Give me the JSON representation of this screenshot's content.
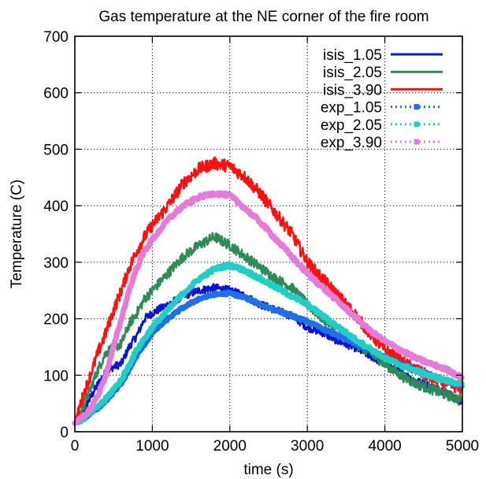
{
  "chart_data": {
    "type": "line",
    "title": "Gas temperature at the NE corner of the fire room",
    "xlabel": "time (s)",
    "ylabel": "Temperature (C)",
    "xlim": [
      0,
      5000
    ],
    "ylim": [
      0,
      700
    ],
    "xticks": [
      0,
      1000,
      2000,
      3000,
      4000,
      5000
    ],
    "yticks": [
      0,
      100,
      200,
      300,
      400,
      500,
      600,
      700
    ],
    "grid": true,
    "legend_position": "top-right",
    "series": [
      {
        "name": "isis_1.05",
        "style": "solid",
        "color": "#0a14d2",
        "noise": 7,
        "x": [
          0,
          100,
          200,
          300,
          400,
          500,
          600,
          700,
          800,
          900,
          1000,
          1200,
          1400,
          1600,
          1800,
          2000,
          2200,
          2400,
          2600,
          2800,
          3000,
          3200,
          3400,
          3600,
          3800,
          4000,
          4200,
          4400,
          4600,
          4800,
          5000
        ],
        "y": [
          15,
          35,
          60,
          85,
          105,
          115,
          120,
          150,
          170,
          200,
          210,
          225,
          240,
          250,
          255,
          250,
          240,
          225,
          215,
          205,
          185,
          175,
          160,
          150,
          135,
          120,
          105,
          90,
          80,
          70,
          50
        ]
      },
      {
        "name": "isis_2.05",
        "style": "solid",
        "color": "#2e8b57",
        "noise": 9,
        "x": [
          0,
          100,
          200,
          300,
          400,
          500,
          600,
          700,
          800,
          900,
          1000,
          1200,
          1400,
          1600,
          1800,
          2000,
          2200,
          2400,
          2600,
          2800,
          3000,
          3200,
          3400,
          3600,
          3800,
          4000,
          4200,
          4400,
          4600,
          4800,
          5000
        ],
        "y": [
          15,
          40,
          75,
          110,
          140,
          150,
          155,
          190,
          210,
          235,
          250,
          280,
          310,
          330,
          345,
          330,
          310,
          290,
          270,
          255,
          225,
          200,
          180,
          160,
          140,
          120,
          100,
          85,
          75,
          65,
          55
        ]
      },
      {
        "name": "isis_3.90",
        "style": "solid",
        "color": "#ff1010",
        "noise": 11,
        "x": [
          0,
          100,
          200,
          300,
          400,
          500,
          600,
          700,
          800,
          900,
          1000,
          1200,
          1400,
          1600,
          1800,
          2000,
          2200,
          2400,
          2600,
          2800,
          3000,
          3200,
          3400,
          3600,
          3800,
          4000,
          4200,
          4400,
          4600,
          4800,
          5000
        ],
        "y": [
          18,
          60,
          100,
          140,
          175,
          215,
          250,
          290,
          320,
          345,
          365,
          400,
          440,
          465,
          475,
          470,
          450,
          420,
          385,
          350,
          300,
          270,
          240,
          210,
          175,
          145,
          125,
          110,
          95,
          85,
          75
        ]
      },
      {
        "name": "exp_1.05",
        "style": "dotted-marker",
        "color": "#1e6fe8",
        "noise": 2,
        "x": [
          0,
          100,
          200,
          300,
          400,
          500,
          600,
          700,
          800,
          900,
          1000,
          1200,
          1400,
          1600,
          1800,
          2000,
          2200,
          2400,
          2600,
          2800,
          3000,
          3200,
          3400,
          3600,
          3800,
          4000,
          4200,
          4400,
          4600,
          4800,
          5000
        ],
        "y": [
          15,
          22,
          32,
          42,
          55,
          70,
          85,
          110,
          135,
          155,
          175,
          200,
          220,
          235,
          243,
          245,
          237,
          225,
          215,
          205,
          195,
          182,
          170,
          157,
          145,
          132,
          120,
          110,
          100,
          90,
          80
        ]
      },
      {
        "name": "exp_2.05",
        "style": "dotted-marker",
        "color": "#22cdc4",
        "noise": 3,
        "x": [
          0,
          100,
          200,
          300,
          400,
          500,
          600,
          700,
          800,
          900,
          1000,
          1200,
          1400,
          1600,
          1800,
          2000,
          2200,
          2400,
          2600,
          2800,
          3000,
          3200,
          3400,
          3600,
          3800,
          4000,
          4200,
          4400,
          4600,
          4800,
          5000
        ],
        "y": [
          15,
          22,
          33,
          45,
          58,
          75,
          92,
          118,
          145,
          165,
          185,
          215,
          245,
          270,
          288,
          295,
          285,
          270,
          255,
          240,
          225,
          205,
          185,
          165,
          148,
          130,
          118,
          108,
          98,
          90,
          85
        ]
      },
      {
        "name": "exp_3.90",
        "style": "dotted-marker",
        "color": "#e67ad8",
        "noise": 3,
        "x": [
          0,
          100,
          200,
          300,
          400,
          500,
          600,
          700,
          800,
          900,
          1000,
          1200,
          1400,
          1600,
          1800,
          2000,
          2200,
          2400,
          2600,
          2800,
          3000,
          3200,
          3400,
          3600,
          3800,
          4000,
          4200,
          4400,
          4600,
          4800,
          5000
        ],
        "y": [
          15,
          25,
          40,
          65,
          100,
          150,
          200,
          250,
          290,
          320,
          340,
          375,
          400,
          415,
          422,
          418,
          395,
          370,
          340,
          310,
          280,
          255,
          230,
          205,
          180,
          160,
          145,
          130,
          120,
          110,
          95
        ]
      }
    ]
  }
}
